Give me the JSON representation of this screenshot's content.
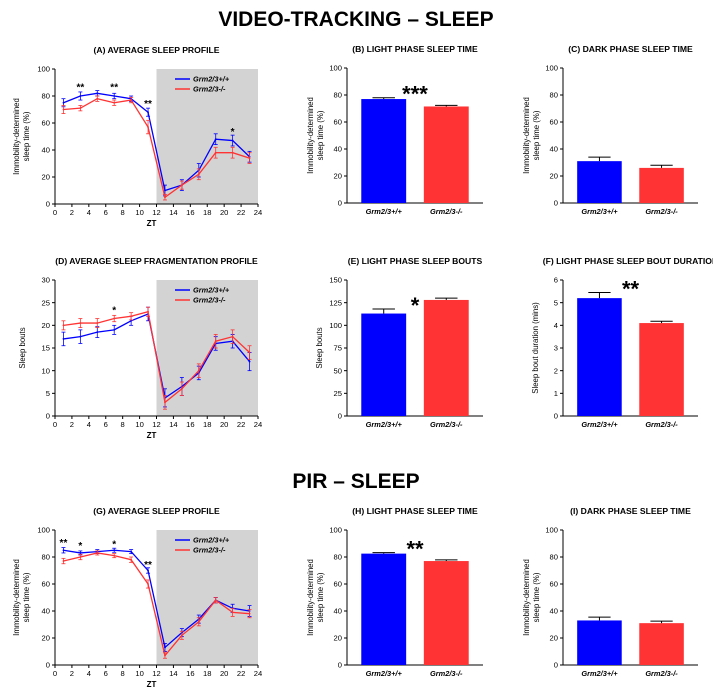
{
  "sections": [
    {
      "title": "VIDEO-TRACKING – SLEEP"
    },
    {
      "title": "PIR – SLEEP"
    }
  ],
  "colors": {
    "wt": "#0000ff",
    "ko": "#ff3333",
    "dark_phase": "#d3d3d3",
    "error": "#000000"
  },
  "chart_data": [
    {
      "type": "line",
      "title": "(A) AVERAGE SLEEP PROFILE",
      "xlabel": "ZT",
      "ylabel": "Immobility-determined sleep time (%)",
      "xlim": [
        0,
        24
      ],
      "ylim": [
        0,
        100
      ],
      "xticks": [
        0,
        2,
        4,
        6,
        8,
        10,
        12,
        14,
        16,
        18,
        20,
        22,
        24
      ],
      "yticks": [
        0,
        20,
        40,
        60,
        80,
        100
      ],
      "dark_phase": [
        12,
        24
      ],
      "x": [
        1,
        3,
        5,
        7,
        9,
        11,
        13,
        15,
        17,
        19,
        21,
        23
      ],
      "series": [
        {
          "name": "Grm2/3+/+",
          "color": "#0000ff",
          "values": [
            75,
            80,
            82,
            80,
            78,
            68,
            10,
            14,
            25,
            48,
            47,
            35
          ],
          "errors": [
            3,
            3,
            2,
            2,
            2,
            3,
            4,
            4,
            5,
            4,
            4,
            4
          ]
        },
        {
          "name": "Grm2/3-/-",
          "color": "#ff3333",
          "values": [
            70,
            71,
            78,
            75,
            77,
            57,
            5,
            14,
            22,
            38,
            38,
            34
          ],
          "errors": [
            3,
            2,
            2,
            2,
            2,
            5,
            2,
            3,
            4,
            4,
            4,
            4
          ]
        }
      ],
      "annotations": [
        {
          "x": 3,
          "y": 87,
          "text": "**"
        },
        {
          "x": 7,
          "y": 87,
          "text": "**"
        },
        {
          "x": 11,
          "y": 75,
          "text": "**"
        },
        {
          "x": 21,
          "y": 54,
          "text": "*"
        }
      ],
      "legend": "top-right"
    },
    {
      "type": "bar",
      "title": "(B) LIGHT PHASE SLEEP TIME",
      "categories": [
        "Grm2/3+/+",
        "Grm2/3-/-"
      ],
      "values": [
        77,
        71.5
      ],
      "errors": [
        1,
        0.8
      ],
      "colors": [
        "#0000ff",
        "#ff3333"
      ],
      "ylabel": "Immobility-determined sleep time (%)",
      "ylim": [
        0,
        100
      ],
      "yticks": [
        0,
        20,
        40,
        60,
        80,
        100
      ],
      "significance": "***"
    },
    {
      "type": "bar",
      "title": "(C) DARK PHASE SLEEP TIME",
      "categories": [
        "Grm2/3+/+",
        "Grm2/3-/-"
      ],
      "values": [
        31,
        26
      ],
      "errors": [
        3,
        2
      ],
      "colors": [
        "#0000ff",
        "#ff3333"
      ],
      "ylabel": "Immobility-determined sleep time (%)",
      "ylim": [
        0,
        100
      ],
      "yticks": [
        0,
        20,
        40,
        60,
        80,
        100
      ],
      "significance": ""
    },
    {
      "type": "line",
      "title": "(D) AVERAGE SLEEP FRAGMENTATION PROFILE",
      "xlabel": "ZT",
      "ylabel": "Sleep bouts",
      "xlim": [
        0,
        24
      ],
      "ylim": [
        0,
        30
      ],
      "xticks": [
        0,
        2,
        4,
        6,
        8,
        10,
        12,
        14,
        16,
        18,
        20,
        22,
        24
      ],
      "yticks": [
        0,
        5,
        10,
        15,
        20,
        25,
        30
      ],
      "dark_phase": [
        12,
        24
      ],
      "x": [
        1,
        3,
        5,
        7,
        9,
        11,
        13,
        15,
        17,
        19,
        21,
        23
      ],
      "series": [
        {
          "name": "Grm2/3+/+",
          "color": "#0000ff",
          "values": [
            17,
            17.5,
            18.5,
            19,
            21,
            22.5,
            4,
            6.5,
            9.5,
            16,
            16.5,
            12
          ],
          "errors": [
            1.5,
            1.5,
            1.2,
            1,
            1,
            1.5,
            2,
            2,
            1.5,
            1.5,
            1.5,
            2
          ]
        },
        {
          "name": "Grm2/3-/-",
          "color": "#ff3333",
          "values": [
            20,
            20.5,
            20.5,
            21.5,
            22,
            23,
            3,
            6,
            10,
            16.5,
            17.5,
            14
          ],
          "errors": [
            1,
            1,
            1,
            0.7,
            0.8,
            1,
            1.5,
            1.5,
            1.5,
            1.5,
            1.5,
            1.5
          ]
        }
      ],
      "annotations": [
        {
          "x": 7,
          "y": 23.5,
          "text": "*"
        }
      ],
      "legend": "top-right"
    },
    {
      "type": "bar",
      "title": "(E) LIGHT PHASE SLEEP BOUTS",
      "categories": [
        "Grm2/3+/+",
        "Grm2/3-/-"
      ],
      "values": [
        113,
        128
      ],
      "errors": [
        5,
        2
      ],
      "colors": [
        "#0000ff",
        "#ff3333"
      ],
      "ylabel": "Sleep bouts",
      "ylim": [
        0,
        150
      ],
      "yticks": [
        0,
        25,
        50,
        75,
        100,
        125,
        150
      ],
      "significance": "*"
    },
    {
      "type": "bar",
      "title": "(F) LIGHT PHASE SLEEP BOUT DURATION",
      "categories": [
        "Grm2/3+/+",
        "Grm2/3-/-"
      ],
      "values": [
        5.2,
        4.1
      ],
      "errors": [
        0.25,
        0.08
      ],
      "colors": [
        "#0000ff",
        "#ff3333"
      ],
      "ylabel": "Sleep bout duration (mins)",
      "ylim": [
        0,
        6
      ],
      "yticks": [
        0,
        1,
        2,
        3,
        4,
        5,
        6
      ],
      "significance": "**"
    },
    {
      "type": "line",
      "title": "(G) AVERAGE SLEEP PROFILE",
      "xlabel": "ZT",
      "ylabel": "Immobility-determined sleep time (%)",
      "xlim": [
        0,
        24
      ],
      "ylim": [
        0,
        100
      ],
      "xticks": [
        0,
        2,
        4,
        6,
        8,
        10,
        12,
        14,
        16,
        18,
        20,
        22,
        24
      ],
      "yticks": [
        0,
        20,
        40,
        60,
        80,
        100
      ],
      "dark_phase": [
        12,
        24
      ],
      "x": [
        1,
        3,
        5,
        7,
        9,
        11,
        13,
        15,
        17,
        19,
        21,
        23
      ],
      "series": [
        {
          "name": "Grm2/3+/+",
          "color": "#0000ff",
          "values": [
            85,
            83,
            84,
            85,
            84,
            70,
            13,
            24,
            34,
            48,
            42,
            40
          ],
          "errors": [
            2,
            1.5,
            1.5,
            1.5,
            1.5,
            2,
            3,
            3,
            3,
            2,
            3,
            4
          ]
        },
        {
          "name": "Grm2/3-/-",
          "color": "#ff3333",
          "values": [
            77,
            80,
            83,
            81,
            78,
            60,
            7,
            22,
            32,
            48,
            39,
            38
          ],
          "errors": [
            2,
            2,
            1.5,
            1.5,
            2,
            3,
            2,
            3,
            3,
            2,
            3,
            3
          ]
        }
      ],
      "annotations": [
        {
          "x": 1,
          "y": 91,
          "text": "**"
        },
        {
          "x": 3,
          "y": 89,
          "text": "*"
        },
        {
          "x": 7,
          "y": 90,
          "text": "*"
        },
        {
          "x": 11,
          "y": 75,
          "text": "**"
        }
      ],
      "legend": "top-right"
    },
    {
      "type": "bar",
      "title": "(H) LIGHT PHASE SLEEP TIME",
      "categories": [
        "Grm2/3+/+",
        "Grm2/3-/-"
      ],
      "values": [
        82.5,
        77
      ],
      "errors": [
        0.7,
        0.9
      ],
      "colors": [
        "#0000ff",
        "#ff3333"
      ],
      "ylabel": "Immobility-determined sleep time (%)",
      "ylim": [
        0,
        100
      ],
      "yticks": [
        0,
        20,
        40,
        60,
        80,
        100
      ],
      "significance": "**"
    },
    {
      "type": "bar",
      "title": "(I) DARK PHASE SLEEP TIME",
      "categories": [
        "Grm2/3+/+",
        "Grm2/3-/-"
      ],
      "values": [
        33,
        31
      ],
      "errors": [
        2.5,
        1.5
      ],
      "colors": [
        "#0000ff",
        "#ff3333"
      ],
      "ylabel": "Immobility-determined sleep time (%)",
      "ylim": [
        0,
        100
      ],
      "yticks": [
        0,
        20,
        40,
        60,
        80,
        100
      ],
      "significance": ""
    }
  ]
}
